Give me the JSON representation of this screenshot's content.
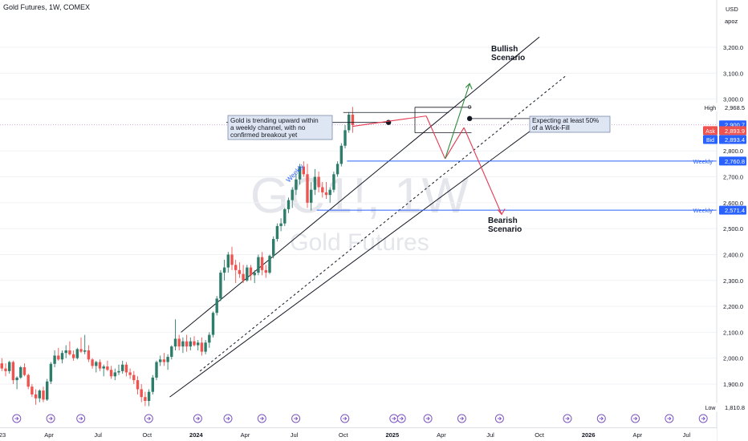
{
  "header": {
    "title": "Gold Futures, 1W, COMEX"
  },
  "price_scale": {
    "currency": "USD",
    "user": "apoz",
    "ticks": [
      "3,200.0",
      "3,100.0",
      "3,000.0",
      "2,800.0",
      "2,700.0",
      "2,600.0",
      "2,500.0",
      "2,400.0",
      "2,300.0",
      "2,200.0",
      "2,100.0",
      "2,000.0",
      "1,900.0"
    ],
    "tick_values": [
      3200,
      3100,
      3000,
      2800,
      2700,
      2600,
      2500,
      2400,
      2300,
      2200,
      2100,
      2000,
      1900
    ],
    "badges": [
      {
        "label": "High",
        "value": "2,968.5",
        "price": 2968.5,
        "style": "plain"
      },
      {
        "label": "",
        "value": "2,900.7",
        "price": 2900.7,
        "style": "blue"
      },
      {
        "label": "Ask",
        "value": "2,893.9",
        "price": 2893.9,
        "style": "red"
      },
      {
        "label": "Bid",
        "value": "2,893.4",
        "price": 2893.4,
        "style": "blue"
      },
      {
        "label": "Weekly",
        "value": "2,760.8",
        "price": 2760.8,
        "style": "blue"
      },
      {
        "label": "Weekly",
        "value": "2,571.4",
        "price": 2571.4,
        "style": "blue"
      },
      {
        "label": "Low",
        "value": "1,810.8",
        "price": 1810.8,
        "style": "plain"
      }
    ]
  },
  "time_axis": {
    "labels": [
      "23",
      "Apr",
      "Jul",
      "Oct",
      "2024",
      "Apr",
      "Jul",
      "Oct",
      "2025",
      "Apr",
      "Jul",
      "Oct",
      "2026",
      "Apr",
      "Jul"
    ],
    "label_weeks": [
      0,
      13,
      26,
      39,
      52,
      65,
      78,
      91,
      104,
      117,
      130,
      143,
      156,
      169,
      182
    ]
  },
  "watermark": {
    "symbol": "GC1!, 1W",
    "name": "Gold Futures"
  },
  "annotations": {
    "trend_note": "Gold is trending upward within a weekly channel, with no confirmed breakout yet",
    "trend_note_lines": [
      "Gold is trending upward within",
      "a weekly channel, with no",
      "confirmed breakout yet"
    ],
    "wick_note_lines": [
      "Expecting at least 50%",
      "of a Wick-Fill"
    ],
    "bullish_lines": [
      "Bullish",
      "Scenario"
    ],
    "bearish_lines": [
      "Bearish",
      "Scenario"
    ],
    "channel_label": "Weekly",
    "fib_zero": "0"
  },
  "colors": {
    "up": "#2e7d6b",
    "down": "#ef5350",
    "channel": "#131722",
    "support": "#2962ff",
    "bull_arrow": "#2e8b3d",
    "bear_arrow": "#e53950",
    "event_icon": "#7e57c2"
  },
  "chart_data": {
    "type": "candlestick",
    "title": "Gold Futures, 1W, COMEX",
    "x_unit": "weeks since first visible week",
    "ylim": [
      1780,
      3260
    ],
    "support_levels": [
      {
        "name": "Weekly",
        "value": 2760.8
      },
      {
        "name": "Weekly",
        "value": 2571.4
      }
    ],
    "key_levels": {
      "high": 2968.5,
      "last": 2900.7,
      "ask": 2893.9,
      "bid": 2893.4,
      "low": 1810.8
    },
    "channel": {
      "upper": [
        [
          48,
          2100
        ],
        [
          143,
          3240
        ]
      ],
      "lower": [
        [
          45,
          1850
        ],
        [
          146,
          2935
        ]
      ],
      "mid": [
        [
          53,
          1950
        ],
        [
          150,
          3090
        ]
      ]
    },
    "scenarios": {
      "bullish_target": 3060,
      "bearish_target": 2555
    },
    "ohlc": [
      [
        1980,
        2000,
        1950,
        1960
      ],
      [
        1960,
        1980,
        1930,
        1950
      ],
      [
        1950,
        1990,
        1940,
        1985
      ],
      [
        1985,
        1990,
        1900,
        1915
      ],
      [
        1915,
        1930,
        1880,
        1925
      ],
      [
        1925,
        1970,
        1920,
        1965
      ],
      [
        1965,
        1980,
        1930,
        1935
      ],
      [
        1935,
        1940,
        1880,
        1890
      ],
      [
        1890,
        1900,
        1850,
        1860
      ],
      [
        1860,
        1880,
        1820,
        1845
      ],
      [
        1845,
        1880,
        1830,
        1875
      ],
      [
        1875,
        1890,
        1830,
        1840
      ],
      [
        1840,
        1920,
        1835,
        1910
      ],
      [
        1910,
        1985,
        1900,
        1978
      ],
      [
        1978,
        2030,
        1965,
        2010
      ],
      [
        2010,
        2040,
        1990,
        1995
      ],
      [
        1995,
        2030,
        1980,
        2020
      ],
      [
        2020,
        2050,
        2000,
        2030
      ],
      [
        2030,
        2065,
        2010,
        2015
      ],
      [
        2015,
        2030,
        1990,
        2000
      ],
      [
        2000,
        2040,
        1995,
        2035
      ],
      [
        2035,
        2080,
        2020,
        2025
      ],
      [
        2025,
        2090,
        2015,
        2030
      ],
      [
        2030,
        2050,
        1985,
        1995
      ],
      [
        1995,
        2000,
        1960,
        1970
      ],
      [
        1970,
        1990,
        1945,
        1985
      ],
      [
        1985,
        1995,
        1950,
        1960
      ],
      [
        1960,
        1975,
        1930,
        1968
      ],
      [
        1968,
        1990,
        1950,
        1955
      ],
      [
        1955,
        1970,
        1920,
        1930
      ],
      [
        1930,
        1960,
        1915,
        1945
      ],
      [
        1945,
        1975,
        1935,
        1950
      ],
      [
        1950,
        1990,
        1940,
        1975
      ],
      [
        1975,
        1985,
        1930,
        1945
      ],
      [
        1945,
        1960,
        1920,
        1935
      ],
      [
        1935,
        1950,
        1900,
        1915
      ],
      [
        1915,
        1930,
        1860,
        1880
      ],
      [
        1880,
        1900,
        1830,
        1850
      ],
      [
        1850,
        1870,
        1815,
        1835
      ],
      [
        1835,
        1880,
        1815,
        1870
      ],
      [
        1870,
        1935,
        1860,
        1925
      ],
      [
        1925,
        1990,
        1915,
        1985
      ],
      [
        1985,
        2010,
        1970,
        1995
      ],
      [
        1995,
        2020,
        1970,
        1985
      ],
      [
        1985,
        2015,
        1955,
        2005
      ],
      [
        2005,
        2050,
        1995,
        2045
      ],
      [
        2045,
        2150,
        2030,
        2075
      ],
      [
        2075,
        2090,
        2030,
        2045
      ],
      [
        2045,
        2080,
        2020,
        2065
      ],
      [
        2065,
        2090,
        2025,
        2045
      ],
      [
        2045,
        2080,
        2030,
        2065
      ],
      [
        2065,
        2085,
        2045,
        2050
      ],
      [
        2050,
        2070,
        2030,
        2060
      ],
      [
        2060,
        2080,
        2010,
        2025
      ],
      [
        2025,
        2070,
        2015,
        2060
      ],
      [
        2060,
        2100,
        2040,
        2090
      ],
      [
        2090,
        2180,
        2080,
        2175
      ],
      [
        2175,
        2240,
        2165,
        2230
      ],
      [
        2230,
        2340,
        2220,
        2330
      ],
      [
        2330,
        2380,
        2300,
        2350
      ],
      [
        2350,
        2410,
        2330,
        2400
      ],
      [
        2400,
        2430,
        2340,
        2360
      ],
      [
        2360,
        2380,
        2290,
        2340
      ],
      [
        2340,
        2370,
        2310,
        2325
      ],
      [
        2325,
        2360,
        2290,
        2300
      ],
      [
        2300,
        2360,
        2295,
        2350
      ],
      [
        2350,
        2360,
        2300,
        2320
      ],
      [
        2320,
        2340,
        2290,
        2330
      ],
      [
        2330,
        2400,
        2320,
        2390
      ],
      [
        2390,
        2410,
        2320,
        2340
      ],
      [
        2340,
        2360,
        2310,
        2330
      ],
      [
        2330,
        2400,
        2325,
        2395
      ],
      [
        2395,
        2470,
        2385,
        2460
      ],
      [
        2460,
        2520,
        2450,
        2510
      ],
      [
        2510,
        2540,
        2490,
        2520
      ],
      [
        2520,
        2580,
        2510,
        2575
      ],
      [
        2575,
        2620,
        2560,
        2610
      ],
      [
        2610,
        2660,
        2580,
        2650
      ],
      [
        2650,
        2710,
        2630,
        2690
      ],
      [
        2690,
        2750,
        2670,
        2740
      ],
      [
        2740,
        2760,
        2700,
        2710
      ],
      [
        2710,
        2750,
        2580,
        2600
      ],
      [
        2600,
        2680,
        2570,
        2650
      ],
      [
        2650,
        2730,
        2630,
        2700
      ],
      [
        2700,
        2720,
        2640,
        2660
      ],
      [
        2660,
        2680,
        2620,
        2640
      ],
      [
        2640,
        2680,
        2615,
        2630
      ],
      [
        2630,
        2660,
        2600,
        2650
      ],
      [
        2650,
        2720,
        2640,
        2710
      ],
      [
        2710,
        2760,
        2700,
        2750
      ],
      [
        2750,
        2830,
        2740,
        2820
      ],
      [
        2820,
        2900,
        2810,
        2880
      ],
      [
        2880,
        2950,
        2870,
        2940
      ],
      [
        2940,
        2970,
        2870,
        2900
      ]
    ]
  }
}
